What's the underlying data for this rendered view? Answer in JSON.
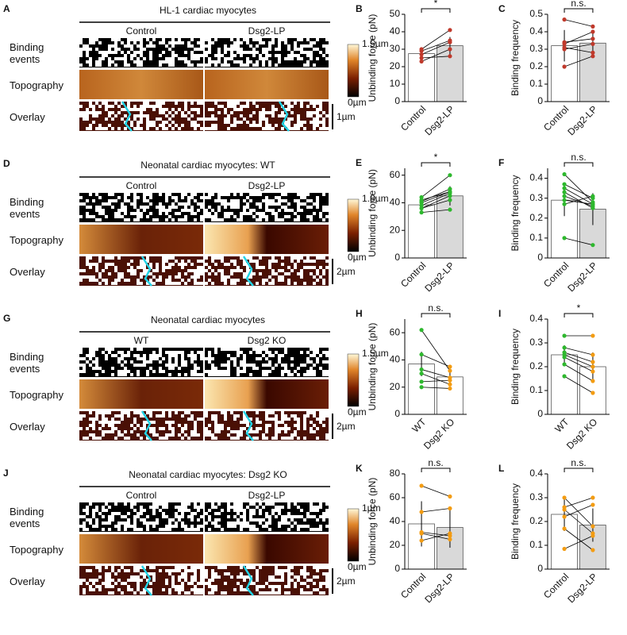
{
  "panels": [
    {
      "label": "A",
      "title": "HL-1 cardiac myocytes",
      "columns": [
        "Control",
        "Dsg2-LP"
      ],
      "rows": [
        "Binding events",
        "Topography",
        "Overlay"
      ],
      "color_scale": [
        "1.5µm",
        "0µm"
      ],
      "scale_bar": "1µm"
    },
    {
      "label": "D",
      "title": "Neonatal cardiac myocytes: WT",
      "columns": [
        "Control",
        "Dsg2-LP"
      ],
      "rows": [
        "Binding events",
        "Topography",
        "Overlay"
      ],
      "color_scale": [
        "1.8µm",
        "0µm"
      ],
      "scale_bar": "2µm"
    },
    {
      "label": "G",
      "title": "Neonatal cardiac myocytes",
      "columns": [
        "WT",
        "Dsg2 KO"
      ],
      "rows": [
        "Binding events",
        "Topography",
        "Overlay"
      ],
      "color_scale": [
        "1.5µm",
        "0µm"
      ],
      "scale_bar": "2µm"
    },
    {
      "label": "J",
      "title": "Neonatal cardiac myocytes: Dsg2 KO",
      "columns": [
        "Control",
        "Dsg2-LP"
      ],
      "rows": [
        "Binding events",
        "Topography",
        "Overlay"
      ],
      "color_scale": [
        "1µm",
        "0µm"
      ],
      "scale_bar": "2µm"
    }
  ],
  "chart_data": [
    {
      "type": "bar",
      "label": "B",
      "y_label": "Unbinding force (pN)",
      "categories": [
        "Control",
        "Dsg2-LP"
      ],
      "values": [
        27.5,
        32
      ],
      "errors": [
        3,
        5
      ],
      "bar_colors": [
        "#ffffff",
        "#d9d9d9"
      ],
      "point_colors": [
        "#c0392b",
        "#c0392b"
      ],
      "pairs": [
        [
          23,
          30
        ],
        [
          25,
          26
        ],
        [
          27,
          34
        ],
        [
          29,
          35
        ],
        [
          30,
          41
        ]
      ],
      "significance": "*",
      "ylim": [
        0,
        50
      ],
      "yticks": [
        0,
        10,
        20,
        30,
        40,
        50
      ]
    },
    {
      "type": "bar",
      "label": "C",
      "y_label": "Binding frequency",
      "categories": [
        "Control",
        "Dsg2-LP"
      ],
      "values": [
        0.32,
        0.335
      ],
      "errors": [
        0.09,
        0.07
      ],
      "bar_colors": [
        "#ffffff",
        "#d9d9d9"
      ],
      "point_colors": [
        "#c0392b",
        "#c0392b"
      ],
      "pairs": [
        [
          0.47,
          0.43
        ],
        [
          0.2,
          0.26
        ],
        [
          0.31,
          0.28
        ],
        [
          0.34,
          0.36
        ],
        [
          0.33,
          0.4
        ],
        [
          0.3,
          0.33
        ]
      ],
      "significance": "n.s.",
      "ylim": [
        0,
        0.5
      ],
      "yticks": [
        0,
        0.1,
        0.2,
        0.3,
        0.4,
        0.5
      ]
    },
    {
      "type": "bar",
      "label": "E",
      "y_label": "Unbinding force (pN)",
      "categories": [
        "Control",
        "Dsg2-LP"
      ],
      "values": [
        38.5,
        45
      ],
      "errors": [
        5,
        7
      ],
      "bar_colors": [
        "#ffffff",
        "#d9d9d9"
      ],
      "point_colors": [
        "#2eb82e",
        "#2eb82e"
      ],
      "pairs": [
        [
          33,
          35
        ],
        [
          36,
          45
        ],
        [
          38,
          47
        ],
        [
          40,
          48
        ],
        [
          41,
          50
        ],
        [
          44,
          60
        ],
        [
          36,
          42
        ],
        [
          42,
          48
        ]
      ],
      "significance": "*",
      "ylim": [
        0,
        65
      ],
      "yticks": [
        0,
        20,
        40,
        60
      ]
    },
    {
      "type": "bar",
      "label": "F",
      "y_label": "Binding frequency",
      "categories": [
        "Control",
        "Dsg2-LP"
      ],
      "values": [
        0.29,
        0.245
      ],
      "errors": [
        0.08,
        0.08
      ],
      "bar_colors": [
        "#ffffff",
        "#d9d9d9"
      ],
      "point_colors": [
        "#2eb82e",
        "#2eb82e"
      ],
      "pairs": [
        [
          0.42,
          0.28
        ],
        [
          0.37,
          0.3
        ],
        [
          0.35,
          0.27
        ],
        [
          0.31,
          0.26
        ],
        [
          0.29,
          0.27
        ],
        [
          0.27,
          0.31
        ],
        [
          0.1,
          0.065
        ],
        [
          0.33,
          0.25
        ]
      ],
      "significance": "n.s.",
      "ylim": [
        0,
        0.45
      ],
      "yticks": [
        0,
        0.1,
        0.2,
        0.3,
        0.4
      ]
    },
    {
      "type": "bar",
      "label": "H",
      "y_label": "Unbinding force (pN)",
      "categories": [
        "WT",
        "Dsg2 KO"
      ],
      "values": [
        37,
        27.5
      ],
      "errors": [
        9,
        4
      ],
      "bar_colors": [
        "#ffffff",
        "#ffffff"
      ],
      "point_colors": [
        "#2eb82e",
        "#f39c12"
      ],
      "pairs": [
        [
          62,
          32
        ],
        [
          44,
          35
        ],
        [
          33,
          27
        ],
        [
          30,
          22
        ],
        [
          24,
          25
        ],
        [
          20,
          19
        ]
      ],
      "significance": "n.s.",
      "ylim": [
        0,
        70
      ],
      "yticks": [
        0,
        20,
        40,
        60
      ]
    },
    {
      "type": "bar",
      "label": "I",
      "y_label": "Binding frequency",
      "categories": [
        "WT",
        "Dsg2 KO"
      ],
      "values": [
        0.25,
        0.2
      ],
      "errors": [
        0.04,
        0.06
      ],
      "bar_colors": [
        "#ffffff",
        "#ffffff"
      ],
      "point_colors": [
        "#2eb82e",
        "#f39c12"
      ],
      "pairs": [
        [
          0.33,
          0.33
        ],
        [
          0.28,
          0.25
        ],
        [
          0.26,
          0.22
        ],
        [
          0.25,
          0.2
        ],
        [
          0.21,
          0.14
        ],
        [
          0.16,
          0.09
        ],
        [
          0.24,
          0.18
        ]
      ],
      "significance": "*",
      "ylim": [
        0,
        0.4
      ],
      "yticks": [
        0,
        0.1,
        0.2,
        0.3,
        0.4
      ]
    },
    {
      "type": "bar",
      "label": "K",
      "y_label": "Unbinding force (pN)",
      "categories": [
        "Control",
        "Dsg2-LP"
      ],
      "values": [
        38,
        35
      ],
      "errors": [
        19,
        17
      ],
      "bar_colors": [
        "#ffffff",
        "#d9d9d9"
      ],
      "point_colors": [
        "#f39c12",
        "#f39c12"
      ],
      "pairs": [
        [
          70,
          61
        ],
        [
          48,
          51
        ],
        [
          31,
          28
        ],
        [
          30,
          25
        ],
        [
          24,
          30
        ]
      ],
      "significance": "n.s.",
      "ylim": [
        0,
        80
      ],
      "yticks": [
        0,
        20,
        40,
        60,
        80
      ]
    },
    {
      "type": "bar",
      "label": "L",
      "y_label": "Binding frequency",
      "categories": [
        "Control",
        "Dsg2-LP"
      ],
      "values": [
        0.23,
        0.185
      ],
      "errors": [
        0.07,
        0.07
      ],
      "bar_colors": [
        "#ffffff",
        "#d9d9d9"
      ],
      "point_colors": [
        "#f39c12",
        "#f39c12"
      ],
      "pairs": [
        [
          0.3,
          0.18
        ],
        [
          0.26,
          0.3
        ],
        [
          0.25,
          0.15
        ],
        [
          0.22,
          0.27
        ],
        [
          0.17,
          0.08
        ],
        [
          0.085,
          0.14
        ]
      ],
      "significance": "n.s.",
      "ylim": [
        0,
        0.4
      ],
      "yticks": [
        0,
        0.1,
        0.2,
        0.3,
        0.4
      ]
    }
  ]
}
